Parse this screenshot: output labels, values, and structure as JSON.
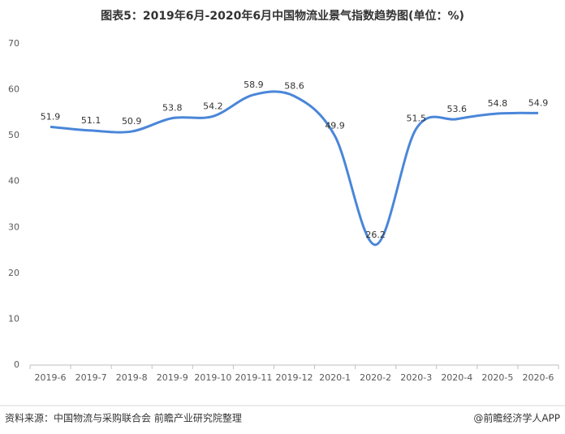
{
  "chart_data": {
    "type": "line",
    "title": "图表5：2019年6月-2020年6月中国物流业景气指数趋势图(单位：%)",
    "categories": [
      "2019-6",
      "2019-7",
      "2019-8",
      "2019-9",
      "2019-10",
      "2019-11",
      "2019-12",
      "2020-1",
      "2020-2",
      "2020-3",
      "2020-4",
      "2020-5",
      "2020-6"
    ],
    "values": [
      51.9,
      51.1,
      50.9,
      53.8,
      54.2,
      58.9,
      58.6,
      49.9,
      26.2,
      51.5,
      53.6,
      54.8,
      54.9
    ],
    "color": "#4a86d9",
    "ylim": [
      0,
      70
    ],
    "yticks": [
      0,
      10,
      20,
      30,
      40,
      50,
      60,
      70
    ],
    "source": "资料来源：中国物流与采购联合会 前瞻产业研究院整理",
    "credit": "@前瞻经济学人APP"
  }
}
